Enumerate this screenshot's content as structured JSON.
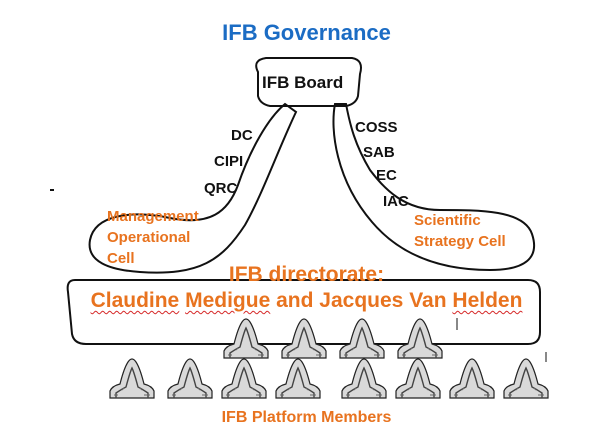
{
  "title": "IFB Governance",
  "board": "IFB Board",
  "left_committees": [
    "DC",
    "CIPI",
    "QRC"
  ],
  "left_cell": [
    "Management",
    "Operational",
    "Cell"
  ],
  "right_committees": [
    "COSS",
    "SAB",
    "EC",
    "IAC"
  ],
  "right_cell": [
    "Scientific",
    "Strategy Cell"
  ],
  "directorate": {
    "line1": "IFB directorate:",
    "line2_names": [
      "Claudine",
      "Medigue",
      "and",
      "Jacques",
      "Van",
      "Helden"
    ]
  },
  "platform_members": "IFB Platform Members",
  "colors": {
    "title": "#1b6cc4",
    "accent": "#e8731f",
    "outline": "#111111"
  }
}
